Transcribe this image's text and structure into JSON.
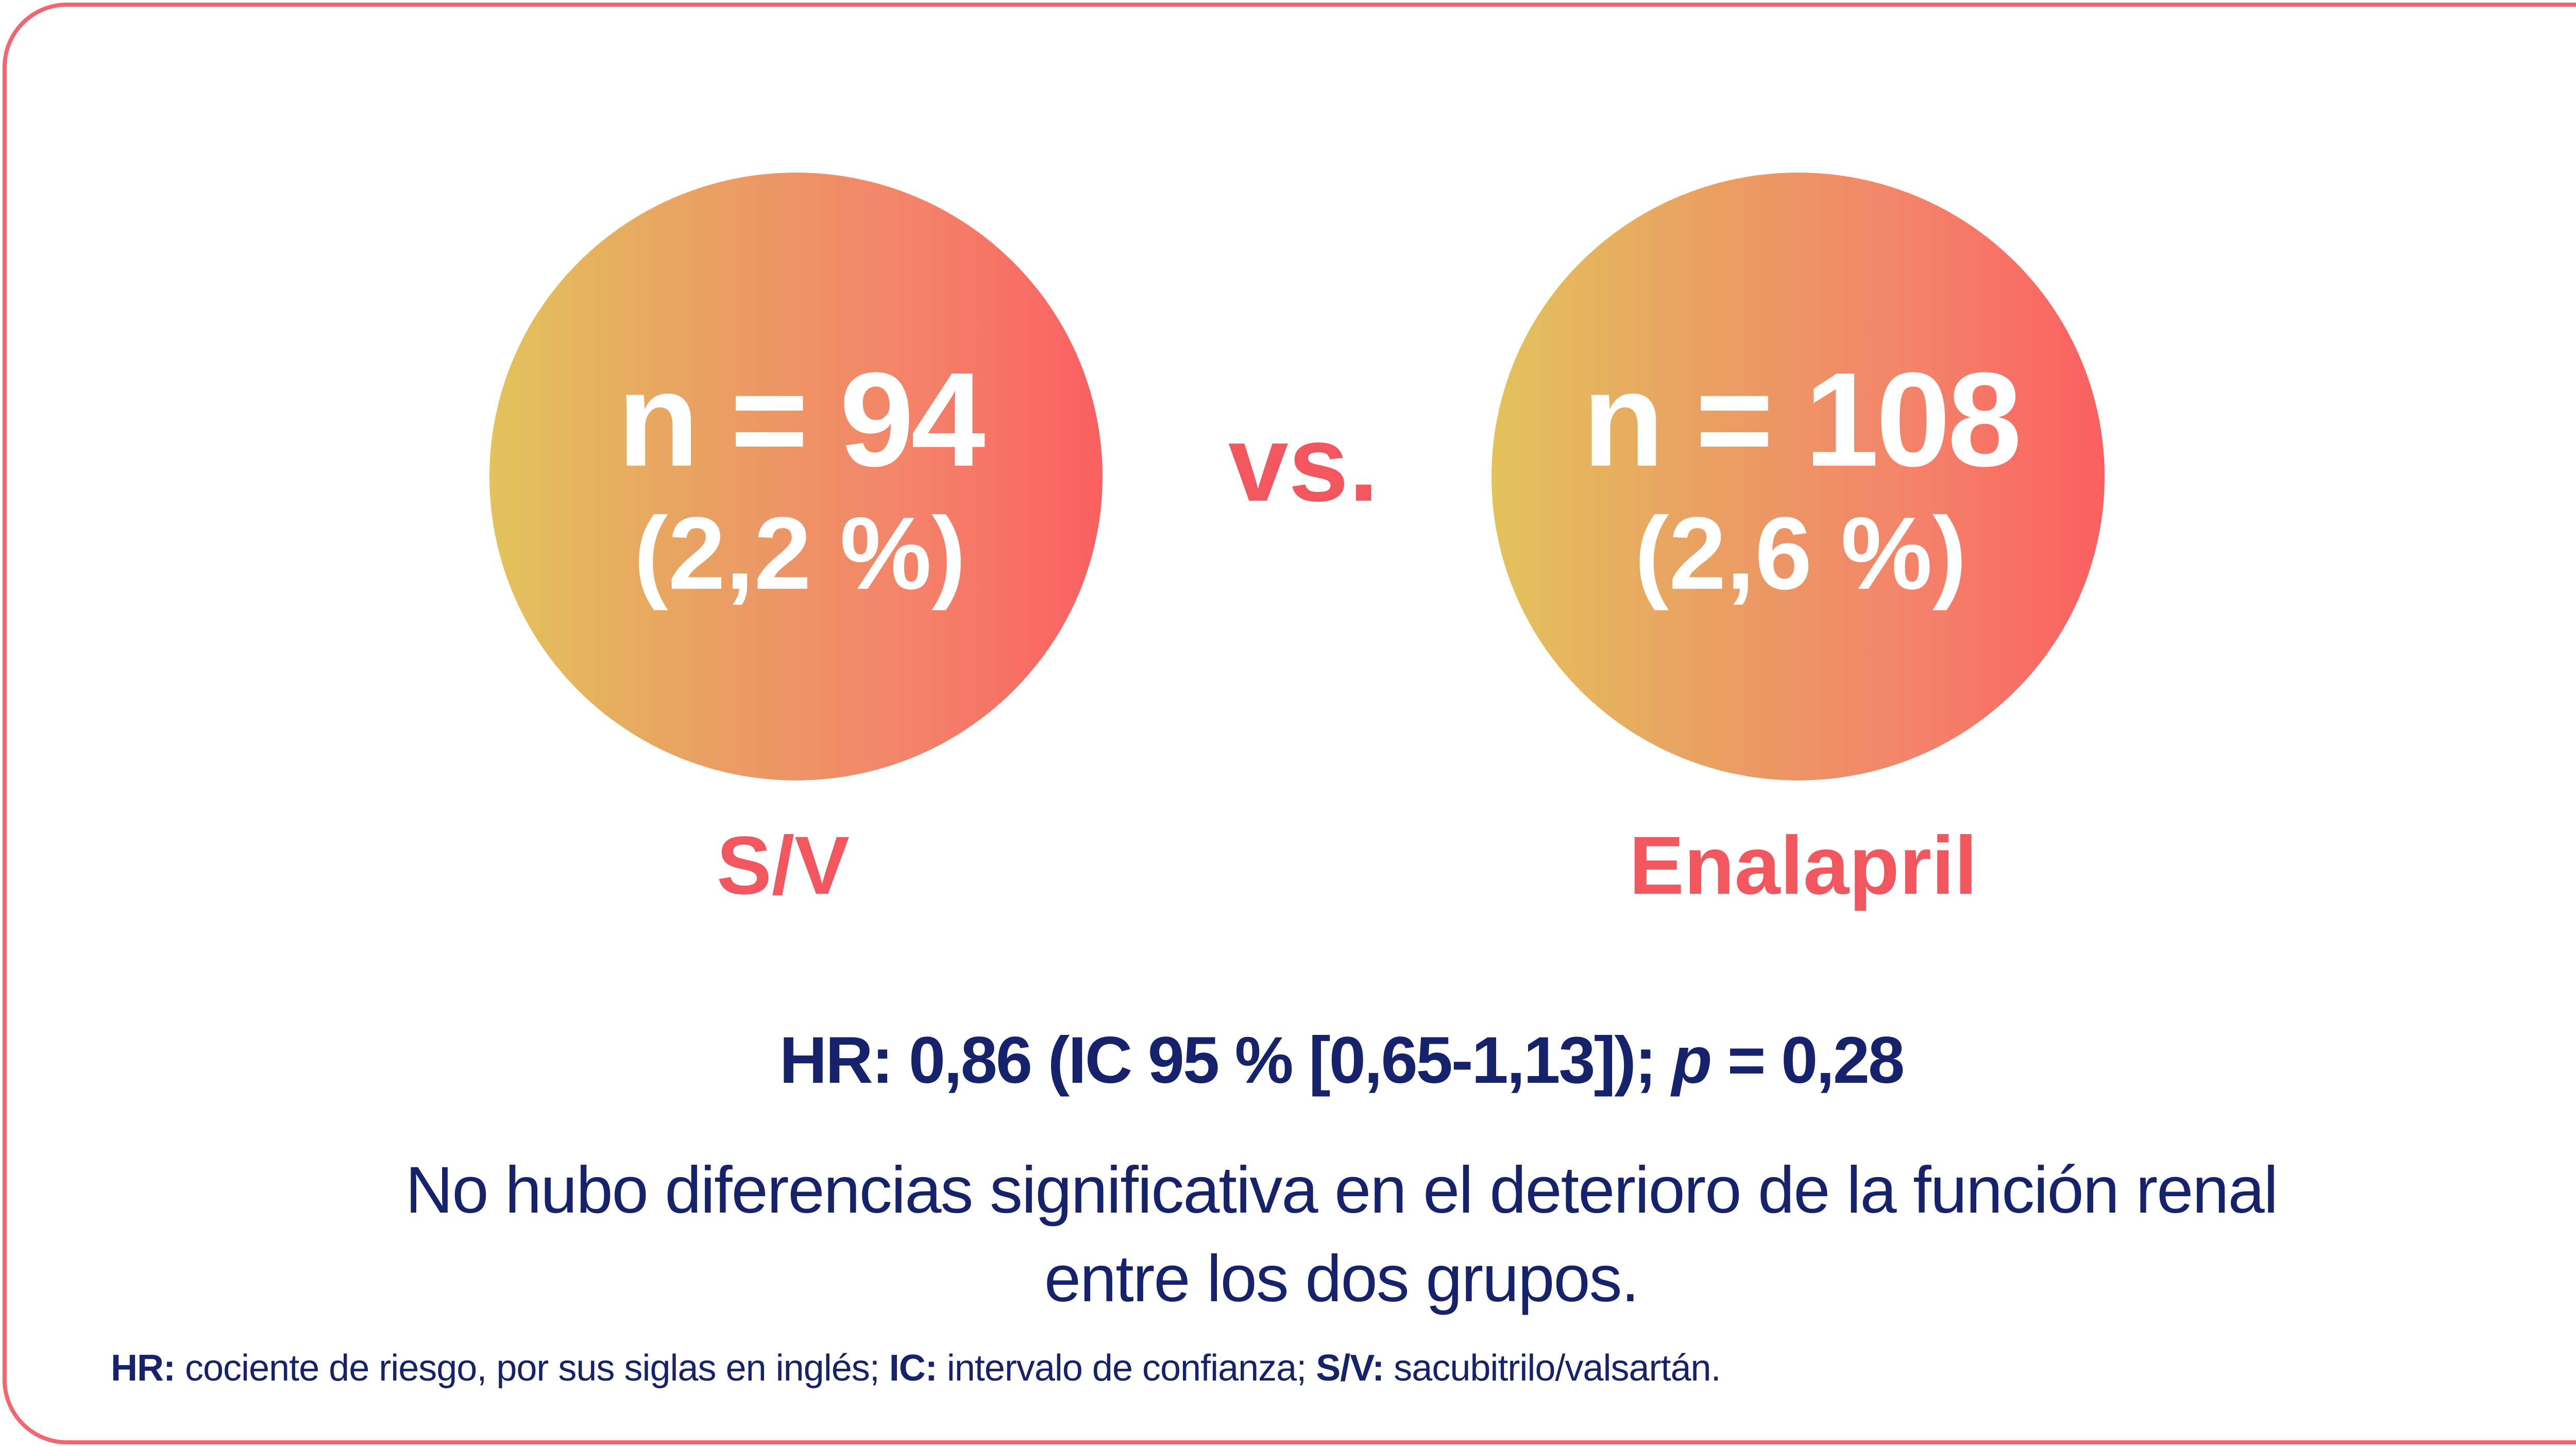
{
  "groups": [
    {
      "n_text": "n = 94",
      "percent_text": "(2,2 %)",
      "label": "S/V"
    },
    {
      "n_text": "n = 108",
      "percent_text": "(2,6 %)",
      "label": "Enalapril"
    }
  ],
  "vs_text": "vs.",
  "stats": {
    "hr_prefix": "HR: 0,86 (IC 95 % [0,65-1,13]); ",
    "p_symbol": "p",
    "p_value": " = 0,28"
  },
  "conclusion": {
    "line1": "No hubo diferencias significativa en el deterioro de la función renal",
    "line2": "entre los dos grupos."
  },
  "footnote": {
    "hr_abbr": "HR:",
    "hr_def": " cociente de riesgo, por sus siglas en inglés; ",
    "ic_abbr": "IC:",
    "ic_def": " intervalo de confianza; ",
    "sv_abbr": "S/V:",
    "sv_def": " sacubitrilo/valsartán."
  },
  "colors": {
    "accent_red": "#f2575f",
    "navy_text": "#16226b",
    "gradient_start": "#e3c35c",
    "gradient_end": "#fb5f60"
  }
}
